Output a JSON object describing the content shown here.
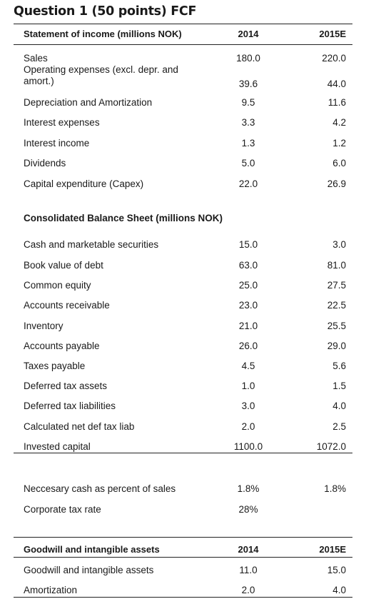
{
  "title": "Question 1 (50 points) FCF",
  "income": {
    "heading": "Statement of income (millions NOK)",
    "col1": "2014",
    "col2": "2015E",
    "rows": [
      {
        "label": "Sales",
        "v1": "180.0",
        "v2": "220.0"
      },
      {
        "label": "Operating expenses (excl. depr. and amort.)",
        "v1": "39.6",
        "v2": "44.0"
      },
      {
        "label": "Depreciation and Amortization",
        "v1": "9.5",
        "v2": "11.6"
      },
      {
        "label": "Interest expenses",
        "v1": "3.3",
        "v2": "4.2"
      },
      {
        "label": "Interest income",
        "v1": "1.3",
        "v2": "1.2"
      },
      {
        "label": "Dividends",
        "v1": "5.0",
        "v2": "6.0"
      },
      {
        "label": "Capital expenditure (Capex)",
        "v1": "22.0",
        "v2": "26.9"
      }
    ]
  },
  "balance": {
    "heading": "Consolidated Balance Sheet (millions NOK)",
    "rows": [
      {
        "label": "Cash and marketable securities",
        "v1": "15.0",
        "v2": "3.0"
      },
      {
        "label": "Book value of debt",
        "v1": "63.0",
        "v2": "81.0"
      },
      {
        "label": "Common equity",
        "v1": "25.0",
        "v2": "27.5"
      },
      {
        "label": "Accounts receivable",
        "v1": "23.0",
        "v2": "22.5"
      },
      {
        "label": "Inventory",
        "v1": "21.0",
        "v2": "25.5"
      },
      {
        "label": "Accounts payable",
        "v1": "26.0",
        "v2": "29.0"
      },
      {
        "label": "Taxes payable",
        "v1": "4.5",
        "v2": "5.6"
      },
      {
        "label": "Deferred tax assets",
        "v1": "1.0",
        "v2": "1.5"
      },
      {
        "label": "Deferred tax liabilities",
        "v1": "3.0",
        "v2": "4.0"
      },
      {
        "label": "Calculated net def tax liab",
        "v1": "2.0",
        "v2": "2.5"
      },
      {
        "label": "Invested capital",
        "v1": "1100.0",
        "v2": "1072.0"
      }
    ]
  },
  "other": {
    "rows": [
      {
        "label": "Neccesary cash as percent of sales",
        "v1": "1.8%",
        "v2": "1.8%"
      },
      {
        "label": "Corporate tax rate",
        "v1": "28%",
        "v2": ""
      }
    ]
  },
  "goodwill": {
    "heading": "Goodwill and intangible assets",
    "col1": "2014",
    "col2": "2015E",
    "rows": [
      {
        "label": "Goodwill and intangible assets",
        "v1": "11.0",
        "v2": "15.0"
      },
      {
        "label": "Amortization",
        "v1": "2.0",
        "v2": "4.0"
      }
    ]
  }
}
